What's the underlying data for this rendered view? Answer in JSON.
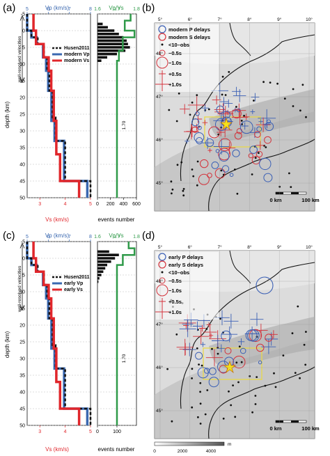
{
  "colors": {
    "vp": "#3a68b0",
    "vs": "#e0262b",
    "husen": "#111111",
    "ratio": "#2f9a49",
    "hist": "#111111",
    "p_marker": "#3a5fb5",
    "s_marker": "#d4313a",
    "box": "#e8d84a",
    "star": "#f5e21a"
  },
  "panels": {
    "a": {
      "label": "(a)",
      "depth_label": "depth (km)",
      "vp_axis_label": "Vp (km/s)",
      "vs_axis_label": "Vs (km/s)",
      "ratio_axis_label": "Vp/Vs",
      "events_label": "events number",
      "well_resolved_label": "well-resolved velocities",
      "ratio_value_label": "1.70",
      "legend": [
        "Husen2011",
        "modern Vp",
        "modern Vs"
      ]
    },
    "b": {
      "label": "(b)",
      "legend": [
        "modern P delays",
        "modern S delays",
        "<10–obs",
        "−0.5s",
        "−1.0s",
        "+0.5s",
        "+1.0s"
      ],
      "scale_left": "0 km",
      "scale_right": "100 km"
    },
    "c": {
      "label": "(c)",
      "depth_label": "depth (km)",
      "vp_axis_label": "Vp (km/s)",
      "vs_axis_label": "Vs (km/s)",
      "ratio_axis_label": "Vp/Vs",
      "events_label": "events number",
      "well_resolved_label": "well-resolved velocities",
      "ratio_value_label": "1.70",
      "legend": [
        "Husen2011",
        "early Vp",
        "early Vs"
      ]
    },
    "d": {
      "label": "(d)",
      "legend": [
        "early P delays",
        "early S delays",
        "<10–obs",
        "−0.5s",
        "−1.0s",
        "+0.5s",
        "+1.0s"
      ],
      "scale_left": "0 km",
      "scale_right": "100 km",
      "elev_ticks": [
        "0",
        "2000",
        "4000"
      ],
      "elev_unit": "m"
    }
  },
  "chart_data": [
    {
      "type": "line",
      "panel": "a",
      "ylabel": "depth (km)",
      "ylim": [
        -5,
        50
      ],
      "y_ticks": [
        -5,
        0,
        5,
        10,
        15,
        20,
        25,
        30,
        35,
        40,
        45,
        50
      ],
      "vp_axis": {
        "label": "Vp (km/s)",
        "lim": [
          5,
          8
        ],
        "ticks": [
          5,
          6,
          7,
          8
        ]
      },
      "vs_axis": {
        "label": "Vs (km/s)",
        "lim": [
          2.5,
          5
        ],
        "ticks": [
          3,
          4,
          5
        ]
      },
      "series": [
        {
          "name": "Husen2011",
          "depth": [
            -5,
            0,
            0,
            2,
            2,
            4,
            4,
            8,
            8,
            12,
            12,
            18,
            18,
            26,
            26,
            33,
            33,
            45,
            45,
            50
          ],
          "vp": [
            5.0,
            5.0,
            5.2,
            5.2,
            5.5,
            5.5,
            5.8,
            5.8,
            5.95,
            5.95,
            6.05,
            6.05,
            6.2,
            6.2,
            6.35,
            6.35,
            6.8,
            6.8,
            8.0,
            8.0
          ]
        },
        {
          "name": "modern Vp",
          "depth": [
            -5,
            0,
            0,
            2,
            2,
            4,
            4,
            8,
            8,
            12,
            12,
            18,
            18,
            27,
            27,
            33,
            33,
            45,
            45,
            50
          ],
          "vp": [
            5.0,
            5.0,
            5.2,
            5.2,
            5.45,
            5.45,
            5.75,
            5.75,
            5.9,
            5.9,
            6.0,
            6.0,
            6.15,
            6.15,
            6.3,
            6.3,
            6.75,
            6.75,
            7.85,
            7.85
          ]
        },
        {
          "name": "modern Vs",
          "depth": [
            -5,
            0,
            0,
            4,
            4,
            8,
            8,
            12,
            12,
            18,
            18,
            27,
            27,
            37,
            37,
            45,
            45,
            50
          ],
          "vs": [
            2.75,
            2.75,
            2.85,
            2.85,
            3.15,
            3.15,
            3.35,
            3.35,
            3.45,
            3.45,
            3.55,
            3.55,
            3.65,
            3.65,
            3.8,
            3.8,
            4.55,
            4.55
          ]
        }
      ],
      "events_axis": {
        "label": "events number",
        "lim": [
          0,
          600
        ],
        "ticks": [
          0,
          200,
          400,
          600
        ]
      },
      "events_histogram": {
        "depth": [
          -2,
          -1,
          0,
          1,
          2,
          3,
          4,
          5,
          6,
          7,
          8,
          9
        ],
        "count": [
          80,
          160,
          260,
          330,
          400,
          450,
          470,
          500,
          430,
          300,
          150,
          60
        ]
      },
      "ratio_axis": {
        "label": "Vp/Vs",
        "lim": [
          1.6,
          1.8
        ],
        "ticks": [
          1.6,
          1.7,
          1.8
        ]
      },
      "ratio": {
        "depth": [
          -5,
          -3,
          -3,
          0,
          0,
          2,
          2,
          6,
          6,
          9,
          9,
          50
        ],
        "value": [
          1.77,
          1.77,
          1.74,
          1.74,
          1.79,
          1.79,
          1.73,
          1.73,
          1.71,
          1.71,
          1.7,
          1.7
        ]
      }
    },
    {
      "type": "line",
      "panel": "c",
      "ylabel": "depth (km)",
      "ylim": [
        -5,
        50
      ],
      "y_ticks": [
        -5,
        0,
        5,
        10,
        15,
        20,
        25,
        30,
        35,
        40,
        45,
        50
      ],
      "vp_axis": {
        "label": "Vp (km/s)",
        "lim": [
          5,
          8
        ],
        "ticks": [
          5,
          6,
          7,
          8
        ]
      },
      "vs_axis": {
        "label": "Vs (km/s)",
        "lim": [
          2.5,
          5
        ],
        "ticks": [
          3,
          4,
          5
        ]
      },
      "series": [
        {
          "name": "Husen2011",
          "depth": [
            -5,
            0,
            0,
            2,
            2,
            4,
            4,
            8,
            8,
            12,
            12,
            18,
            18,
            26,
            26,
            33,
            33,
            45,
            45,
            50
          ],
          "vp": [
            5.0,
            5.0,
            5.2,
            5.2,
            5.5,
            5.5,
            5.8,
            5.8,
            5.95,
            5.95,
            6.05,
            6.05,
            6.2,
            6.2,
            6.35,
            6.35,
            6.8,
            6.8,
            8.0,
            8.0
          ]
        },
        {
          "name": "early Vp",
          "depth": [
            -5,
            0,
            0,
            2,
            2,
            4,
            4,
            8,
            8,
            12,
            12,
            18,
            18,
            27,
            27,
            33,
            33,
            45,
            45,
            50
          ],
          "vp": [
            5.0,
            5.0,
            5.2,
            5.2,
            5.45,
            5.45,
            5.75,
            5.75,
            5.9,
            5.9,
            6.0,
            6.0,
            6.15,
            6.15,
            6.3,
            6.3,
            6.75,
            6.75,
            7.85,
            7.85
          ]
        },
        {
          "name": "early Vs",
          "depth": [
            -5,
            0,
            0,
            4,
            4,
            8,
            8,
            12,
            12,
            18,
            18,
            27,
            27,
            37,
            37,
            45,
            45,
            50
          ],
          "vs": [
            2.75,
            2.75,
            2.85,
            2.85,
            3.15,
            3.15,
            3.35,
            3.35,
            3.45,
            3.45,
            3.55,
            3.55,
            3.65,
            3.65,
            3.8,
            3.8,
            4.55,
            4.55
          ]
        }
      ],
      "events_axis": {
        "label": "events number",
        "lim": [
          0,
          200
        ],
        "ticks": [
          0,
          100
        ]
      },
      "events_histogram": {
        "depth": [
          -2,
          -1,
          0,
          1,
          2,
          3,
          4,
          5,
          6,
          7
        ],
        "count": [
          60,
          110,
          90,
          70,
          50,
          40,
          30,
          20,
          10,
          5
        ]
      },
      "ratio_axis": {
        "label": "Vp/Vs",
        "lim": [
          1.6,
          1.8
        ],
        "ticks": [
          1.6,
          1.7,
          1.8
        ]
      },
      "ratio": {
        "depth": [
          -5,
          -3,
          -3,
          -1,
          -1,
          2,
          2,
          50
        ],
        "value": [
          1.76,
          1.76,
          1.79,
          1.79,
          1.73,
          1.73,
          1.7,
          1.7
        ]
      }
    },
    {
      "type": "scatter",
      "panel": "b",
      "lon_ticks": [
        "5°",
        "6°",
        "7°",
        "8°",
        "9°",
        "10°"
      ],
      "lat_ticks": [
        "45°",
        "46°",
        "47°",
        "48°"
      ],
      "legend": [
        "modern P delays",
        "modern S delays",
        "<10–obs",
        "−0.5s",
        "−1.0s",
        "+0.5s",
        "+1.0s"
      ]
    },
    {
      "type": "scatter",
      "panel": "d",
      "lon_ticks": [
        "5°",
        "6°",
        "7°",
        "8°",
        "9°",
        "10°"
      ],
      "lat_ticks": [
        "45°",
        "46°",
        "47°",
        "48°"
      ],
      "legend": [
        "early P delays",
        "early S delays",
        "<10–obs",
        "−0.5s",
        "−1.0s",
        "+0.5s",
        "+1.0s"
      ]
    }
  ]
}
